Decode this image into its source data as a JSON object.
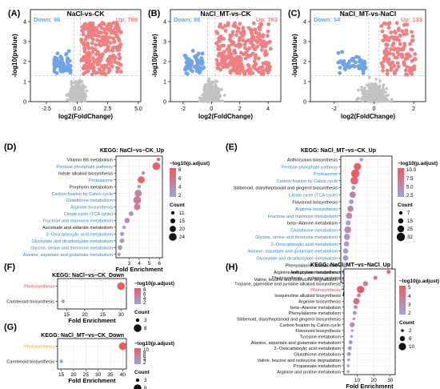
{
  "chart_data": [
    {
      "panel": "(A)",
      "type": "scatter",
      "title": "NaCl-vs-CK",
      "xlabel": "log2(FoldChange)",
      "ylabel": "-log10(pvalue)",
      "down_label": "Down: 96",
      "up_label": "Up: 769",
      "xticks": [
        "-2.5",
        "0.0",
        "2.5",
        "5.0"
      ],
      "yticks": [
        "0",
        "1",
        "2",
        "3",
        "4"
      ],
      "xlim": [
        -3.8,
        5.2
      ],
      "ylim": [
        0,
        4.6
      ],
      "fc_threshold": 0.263,
      "p_threshold": 1.3,
      "down_x_max": -0.5,
      "up_x_max": 3.6
    },
    {
      "panel": "(B)",
      "type": "scatter",
      "title": "NaCl_MT-vs-CK",
      "xlabel": "log2(FoldChange)",
      "ylabel": "-log10(pvalue)",
      "down_label": "Down: 88",
      "up_label": "Up: 763",
      "xticks": [
        "-2",
        "0",
        "2",
        "4"
      ],
      "yticks": [
        "0",
        "1",
        "2",
        "3",
        "4"
      ],
      "xlim": [
        -2.9,
        4.9
      ],
      "ylim": [
        0,
        4.6
      ],
      "fc_threshold": 0.263,
      "p_threshold": 1.3,
      "down_x_max": -0.5,
      "up_x_max": 4.2
    },
    {
      "panel": "(C)",
      "type": "scatter",
      "title": "NaCl_MT-vs-NaCl",
      "xlabel": "log2(FoldChange)",
      "ylabel": "-log10(pvalue)",
      "down_label": "Down: 54",
      "up_label": "Up: 133",
      "xticks": [
        "-2",
        "0",
        "2"
      ],
      "yticks": [
        "0",
        "1",
        "2",
        "3",
        "4"
      ],
      "xlim": [
        -3.2,
        2.6
      ],
      "ylim": [
        0,
        4.6
      ],
      "fc_threshold": 0.263,
      "p_threshold": 1.3,
      "down_x_max": -0.4,
      "up_x_max": 2.1
    },
    {
      "panel": "(D)",
      "type": "scatter",
      "title": "KEGG: NaCl−vs−CK_Up",
      "xlabel": "Fold Enrichment",
      "xticks": [
        "3",
        "4",
        "5",
        "6"
      ],
      "xlim": [
        1.7,
        6.3
      ],
      "legend_title": "−log10(p.adjust)",
      "legend_ticks": [
        "8",
        "6",
        "4",
        "2"
      ],
      "size_title": "Count",
      "size_ticks": [
        "11",
        "15",
        "20",
        "24"
      ],
      "terms": [
        "Vitamin B6 metabolism",
        "Pentose phosphate pathway",
        "Indole alkaloid biosynthesis",
        "Proteasome",
        "Porphyrin metabolism",
        "Carbon fixation by Calvin cycle",
        "Glutathione metabolism",
        "Arginine biosynthesis",
        "Citrate cycle (TCA cycle)",
        "Fructose and mannose metabolism",
        "Ascorbate and aldarate metabolism",
        "2−Oxocarboxylic acid metabolism",
        "Glyoxylate and dicarboxylate metabolism",
        "Glycine, serine and threonine metabolism",
        "Alanine, aspartate and glutamate metabolism"
      ],
      "highlight": [
        false,
        true,
        false,
        true,
        false,
        true,
        true,
        true,
        true,
        true,
        false,
        true,
        true,
        true,
        true
      ],
      "values": [
        5.9,
        5.7,
        4.4,
        4.2,
        4.0,
        3.9,
        3.8,
        3.8,
        3.2,
        2.8,
        2.5,
        2.3,
        2.3,
        2.1,
        2.0
      ],
      "counts": [
        11,
        18,
        11,
        17,
        11,
        17,
        18,
        16,
        13,
        14,
        11,
        12,
        13,
        13,
        11
      ],
      "neglog10_padj": [
        6.2,
        8.4,
        4.2,
        8.0,
        3.2,
        5.2,
        6.0,
        5.8,
        3.8,
        4.0,
        2.4,
        2.6,
        3.0,
        2.7,
        2.4
      ]
    },
    {
      "panel": "(E)",
      "type": "scatter",
      "title": "KEGG: NaCl_MT−vs−CK_Up",
      "xlabel": "Fold Enrichment",
      "xticks": [
        "2.5",
        "5.0",
        "7.5",
        "10.0",
        "12.5"
      ],
      "xlim": [
        1.5,
        13.2
      ],
      "legend_title": "−log10(p.adjust)",
      "legend_ticks": [
        "10.0",
        "7.5",
        "5.0",
        "2.5"
      ],
      "size_title": "Count",
      "size_ticks": [
        "7",
        "15",
        "25",
        "32"
      ],
      "terms": [
        "Anthocyanin biosynthesis",
        "Pentose phosphate pathway",
        "Proteasome",
        "Carbon fixation by Calvin cycle",
        "Stilbenoid, diarylheptanoid and gingerol biosynthesis",
        "Citrate cycle (TCA cycle)",
        "Flavonoid biosynthesis",
        "Arginine biosynthesis",
        "Fructose and mannose metabolism",
        "beta−Alanine metabolism",
        "Glutathione metabolism",
        "Glycine, serine and threonine metabolism",
        "2−Oxocarboxylic acid metabolism",
        "Alanine, aspartate and glutamate metabolism",
        "Glyoxylate and dicarboxylate metabolism",
        "Phenylalanine metabolism",
        "Arginine and proline metabolism",
        "Valine, leucine and isoleucine degradation"
      ],
      "highlight": [
        false,
        true,
        true,
        true,
        false,
        true,
        false,
        true,
        true,
        false,
        true,
        true,
        true,
        true,
        true,
        false,
        false,
        false
      ],
      "values": [
        6.2,
        5.3,
        4.8,
        4.6,
        4.4,
        4.2,
        3.9,
        3.7,
        3.4,
        3.2,
        3.1,
        2.9,
        2.8,
        2.6,
        2.6,
        2.4,
        2.3,
        2.2
      ],
      "counts": [
        7,
        22,
        26,
        24,
        10,
        18,
        12,
        17,
        18,
        13,
        20,
        17,
        14,
        14,
        15,
        12,
        14,
        11
      ],
      "neglog10_padj": [
        3.0,
        10.5,
        11.0,
        9.8,
        2.9,
        6.5,
        3.0,
        6.0,
        6.0,
        3.0,
        5.5,
        4.5,
        3.5,
        3.4,
        3.8,
        2.8,
        2.8,
        2.6
      ]
    },
    {
      "panel": "(F)",
      "type": "scatter",
      "title": "KEGG: NaCl−vs−CK_Down",
      "xlabel": "Fold Enrichment",
      "xticks": [
        "15",
        "20",
        "25",
        "30"
      ],
      "xlim": [
        12.5,
        31.5
      ],
      "legend_title": "−log10(p.adjust)",
      "legend_ticks": [
        "8",
        "6",
        "4",
        "2"
      ],
      "size_title": "Count",
      "size_ticks": [
        "3",
        "8"
      ],
      "terms": [
        "Photosynthesis",
        "Carotenoid biosynthesis"
      ],
      "highlight": [
        true,
        false
      ],
      "values": [
        30.0,
        14.0
      ],
      "counts": [
        8,
        3
      ],
      "neglog10_padj": [
        8.5,
        2.2
      ]
    },
    {
      "panel": "(G)",
      "type": "scatter",
      "title": "KEGG: NaCl_MT−vs−CK_Down",
      "xlabel": "Fold Enrichment",
      "xticks": [
        "15",
        "20",
        "25",
        "30",
        "35",
        "40"
      ],
      "xlim": [
        13.5,
        41.5
      ],
      "legend_title": "−log10(p.adjust)",
      "legend_ticks": [
        "10",
        "8",
        "6",
        "4",
        "2"
      ],
      "size_title": "Count",
      "size_ticks": [
        "3",
        "9"
      ],
      "terms": [
        "Photosynthesis",
        "Carotenoid biosynthesis"
      ],
      "highlight": [
        true,
        false
      ],
      "values": [
        40.0,
        15.0
      ],
      "counts": [
        9,
        3
      ],
      "neglog10_padj": [
        10.0,
        2.0
      ]
    },
    {
      "panel": "(H)",
      "type": "scatter",
      "title": "KEGG: NaCl_MT−vs−NaCl_Up",
      "xlabel": "Fold Enrichment",
      "xticks": [
        "10",
        "20",
        "30"
      ],
      "xlim": [
        2,
        33
      ],
      "legend_title": "−log10(p.adjust)",
      "legend_ticks": [
        "5",
        "4",
        "3",
        "2"
      ],
      "size_title": "Count",
      "size_ticks": [
        "2",
        "6",
        "10"
      ],
      "terms": [
        "Anthocyanin biosynthesis",
        "Photosynthesis − antenna proteins",
        "Tropane, piperidine and pyridine alkaloid biosynthesis",
        "Photosynthesis",
        "Isoquinoline alkaloid biosynthesis",
        "Arginine biosynthesis",
        "beta−Alanine metabolism",
        "Phenylalanine metabolism",
        "Stilbenoid, diarylheptanoid and gingerol biosynthesis",
        "Carbon fixation by Calvin cycle",
        "Flavonoid biosynthesis",
        "Tyrosine metabolism",
        "Alanine, aspartate and glutamate metabolism",
        "2−Oxocarboxylic acid metabolism",
        "Glutathione metabolism",
        "Valine, leucine and isoleucine degradation",
        "Propanoate metabolism",
        "Arginine and proline metabolism"
      ],
      "highlight": [
        false,
        false,
        false,
        true,
        false,
        false,
        false,
        false,
        false,
        false,
        false,
        false,
        false,
        false,
        false,
        false,
        false,
        false
      ],
      "values": [
        29.0,
        21.0,
        15.0,
        12.0,
        11.0,
        9.5,
        9.0,
        8.5,
        8.0,
        7.0,
        7.0,
        6.5,
        6.0,
        5.5,
        5.0,
        4.8,
        4.6,
        4.5
      ],
      "counts": [
        4,
        4,
        5,
        7,
        4,
        6,
        4,
        4,
        3,
        5,
        3,
        3,
        4,
        4,
        4,
        3,
        3,
        3
      ],
      "neglog10_padj": [
        4.5,
        4.0,
        3.6,
        5.3,
        3.3,
        4.5,
        3.0,
        2.8,
        2.2,
        3.0,
        2.0,
        2.0,
        2.5,
        2.5,
        2.3,
        2.0,
        2.0,
        2.0
      ]
    }
  ],
  "colors": {
    "up": "#f08080",
    "down": "#6fa4e8",
    "ns": "#c2c2c2",
    "highlight_text": "#2a8ac4",
    "photo_text_f": "#e8474c",
    "photo_text_g": "#f0a020",
    "photo_text_h": "#e8474c",
    "grad_high": "#f25a60",
    "grad_low": "#9aa6d8"
  }
}
